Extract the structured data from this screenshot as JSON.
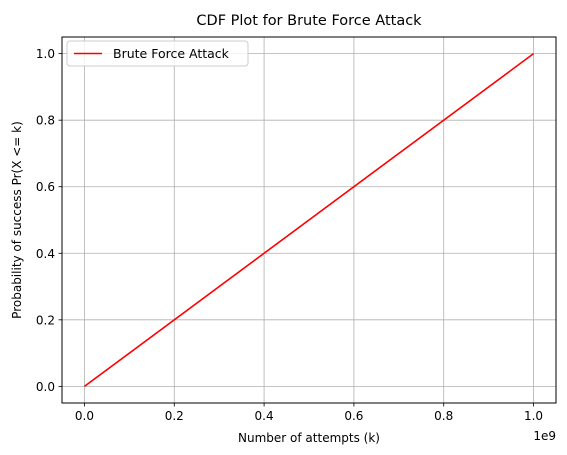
{
  "chart_data": {
    "type": "line",
    "title": "CDF Plot for Brute Force Attack",
    "xlabel": "Number of attempts (k)",
    "ylabel": "Probability of success Pr(X <= k)",
    "x_offset_label": "1e9",
    "xlim": [
      -0.05,
      1.05
    ],
    "ylim": [
      -0.05,
      1.05
    ],
    "x_ticks": [
      0.0,
      0.2,
      0.4,
      0.6,
      0.8,
      1.0
    ],
    "x_tick_labels": [
      "0.0",
      "0.2",
      "0.4",
      "0.6",
      "0.8",
      "1.0"
    ],
    "y_ticks": [
      0.0,
      0.2,
      0.4,
      0.6,
      0.8,
      1.0
    ],
    "y_tick_labels": [
      "0.0",
      "0.2",
      "0.4",
      "0.6",
      "0.8",
      "1.0"
    ],
    "grid": true,
    "legend_position": "top-left",
    "series": [
      {
        "name": "Brute Force Attack",
        "color": "#ff0000",
        "x": [
          0.0,
          1.0
        ],
        "y": [
          0.0,
          1.0
        ]
      }
    ]
  }
}
